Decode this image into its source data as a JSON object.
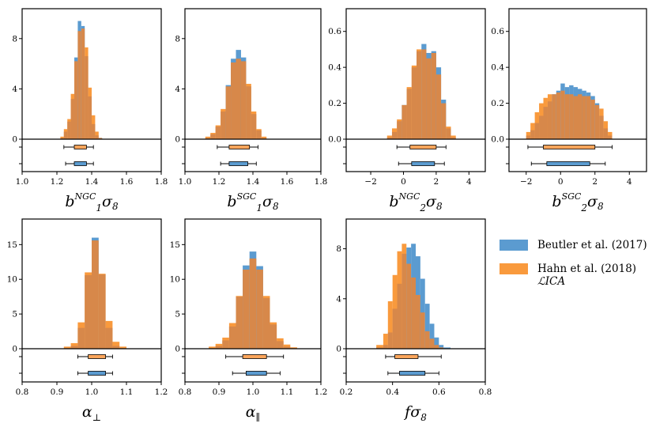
{
  "colors": {
    "series_a": "#5b9bd0",
    "series_b": "#f99a3d",
    "overlap": "#d7884a",
    "box_a": "#5b9bd0",
    "box_b": "#fca55b"
  },
  "legend": {
    "entries": [
      {
        "label": "Beutler et al. (2017)",
        "sublabel": "",
        "color_key": "series_a"
      },
      {
        "label": "Hahn et al. (2018)",
        "sublabel": "ℒICA",
        "color_key": "series_b"
      }
    ]
  },
  "chart_data": [
    {
      "type": "histogram",
      "xlabel": "b1NGCσ8",
      "xlabel_parts": {
        "base": "b",
        "sub": "1",
        "sup": "NGC",
        "tail": "σ8"
      },
      "xlim": [
        1.0,
        1.8
      ],
      "xticks": [
        "1.0",
        "1.2",
        "1.4",
        "1.6",
        "1.8"
      ],
      "ylim": [
        0,
        10
      ],
      "yticks": [
        "0",
        "4",
        "8"
      ],
      "bin_edges": [
        1.22,
        1.24,
        1.26,
        1.28,
        1.3,
        1.32,
        1.34,
        1.36,
        1.38,
        1.4,
        1.42,
        1.44,
        1.46
      ],
      "series": [
        {
          "name": "Beutler et al. (2017)",
          "values": [
            0.1,
            0.6,
            1.4,
            3.2,
            6.5,
            9.4,
            9.0,
            6.6,
            3.4,
            1.2,
            0.3,
            0.1
          ]
        },
        {
          "name": "Hahn et al. (2018)",
          "values": [
            0.2,
            0.8,
            1.6,
            3.6,
            6.2,
            8.6,
            8.8,
            7.3,
            4.1,
            1.9,
            0.6,
            0.1
          ]
        }
      ],
      "intervals": [
        {
          "name": "Hahn et al. (2018)",
          "whisker": [
            1.24,
            1.41
          ],
          "box": [
            1.3,
            1.37
          ]
        },
        {
          "name": "Beutler et al. (2017)",
          "whisker": [
            1.25,
            1.41
          ],
          "box": [
            1.3,
            1.37
          ]
        }
      ]
    },
    {
      "type": "histogram",
      "xlabel": "b1SGCσ8",
      "xlabel_parts": {
        "base": "b",
        "sub": "1",
        "sup": "SGC",
        "tail": "σ8"
      },
      "xlim": [
        1.0,
        1.8
      ],
      "xticks": [
        "1.0",
        "1.2",
        "1.4",
        "1.6",
        "1.8"
      ],
      "ylim": [
        0,
        10
      ],
      "yticks": [
        "0",
        "4",
        "8"
      ],
      "bin_edges": [
        1.12,
        1.15,
        1.18,
        1.21,
        1.24,
        1.27,
        1.3,
        1.33,
        1.36,
        1.39,
        1.42,
        1.45,
        1.48
      ],
      "series": [
        {
          "name": "Beutler et al. (2017)",
          "values": [
            0.1,
            0.4,
            1.0,
            2.2,
            4.3,
            6.4,
            7.1,
            6.5,
            4.2,
            2.0,
            0.7,
            0.1
          ]
        },
        {
          "name": "Hahn et al. (2018)",
          "values": [
            0.2,
            0.5,
            1.1,
            2.4,
            4.2,
            6.1,
            6.4,
            6.2,
            4.4,
            2.2,
            0.8,
            0.2
          ]
        }
      ],
      "intervals": [
        {
          "name": "Hahn et al. (2018)",
          "whisker": [
            1.19,
            1.43
          ],
          "box": [
            1.26,
            1.38
          ]
        },
        {
          "name": "Beutler et al. (2017)",
          "whisker": [
            1.21,
            1.42
          ],
          "box": [
            1.26,
            1.37
          ]
        }
      ]
    },
    {
      "type": "histogram",
      "xlabel": "b2NGCσ8",
      "xlabel_parts": {
        "base": "b",
        "sub": "2",
        "sup": "NGC",
        "tail": "σ8"
      },
      "xlim": [
        -3.5,
        5.0
      ],
      "xticks": [
        "−2",
        "0",
        "2",
        "4"
      ],
      "xtick_values": [
        -2,
        0,
        2,
        4
      ],
      "ylim": [
        0,
        0.7
      ],
      "yticks": [
        "0.0",
        "0.2",
        "0.4",
        "0.6"
      ],
      "bin_edges": [
        -1.0,
        -0.7,
        -0.4,
        -0.1,
        0.2,
        0.5,
        0.8,
        1.1,
        1.4,
        1.7,
        2.0,
        2.3,
        2.6,
        2.9,
        3.2
      ],
      "series": [
        {
          "name": "Beutler et al. (2017)",
          "values": [
            0.01,
            0.04,
            0.1,
            0.19,
            0.28,
            0.4,
            0.49,
            0.53,
            0.48,
            0.49,
            0.4,
            0.22,
            0.06,
            0.01
          ]
        },
        {
          "name": "Hahn et al. (2018)",
          "values": [
            0.02,
            0.06,
            0.11,
            0.19,
            0.29,
            0.41,
            0.5,
            0.5,
            0.45,
            0.48,
            0.36,
            0.2,
            0.07,
            0.02
          ]
        }
      ],
      "intervals": [
        {
          "name": "Hahn et al. (2018)",
          "whisker": [
            -0.4,
            2.6
          ],
          "box": [
            0.4,
            2.0
          ]
        },
        {
          "name": "Beutler et al. (2017)",
          "whisker": [
            -0.3,
            2.5
          ],
          "box": [
            0.5,
            1.9
          ]
        }
      ]
    },
    {
      "type": "histogram",
      "xlabel": "b2SGCσ8",
      "xlabel_parts": {
        "base": "b",
        "sub": "2",
        "sup": "SGC",
        "tail": "σ8"
      },
      "xlim": [
        -3.0,
        5.0
      ],
      "xticks": [
        "−2",
        "0",
        "2",
        "4"
      ],
      "xtick_values": [
        -2,
        0,
        2,
        4
      ],
      "ylim": [
        0,
        0.7
      ],
      "yticks": [
        "0.0",
        "0.2",
        "0.4",
        "0.6"
      ],
      "bin_edges": [
        -2.0,
        -1.75,
        -1.5,
        -1.25,
        -1.0,
        -0.75,
        -0.5,
        -0.25,
        0.0,
        0.25,
        0.5,
        0.75,
        1.0,
        1.25,
        1.5,
        1.75,
        2.0,
        2.25,
        2.5,
        2.75,
        3.0
      ],
      "series": [
        {
          "name": "Beutler et al. (2017)",
          "values": [
            0.02,
            0.05,
            0.09,
            0.13,
            0.18,
            0.21,
            0.25,
            0.27,
            0.31,
            0.29,
            0.3,
            0.29,
            0.28,
            0.27,
            0.26,
            0.24,
            0.2,
            0.13,
            0.06,
            0.02
          ]
        },
        {
          "name": "Hahn et al. (2018)",
          "values": [
            0.04,
            0.09,
            0.15,
            0.2,
            0.23,
            0.25,
            0.25,
            0.26,
            0.27,
            0.25,
            0.25,
            0.24,
            0.25,
            0.24,
            0.24,
            0.22,
            0.19,
            0.17,
            0.1,
            0.04
          ]
        }
      ],
      "intervals": [
        {
          "name": "Hahn et al. (2018)",
          "whisker": [
            -1.9,
            3.0
          ],
          "box": [
            -1.0,
            2.0
          ]
        },
        {
          "name": "Beutler et al. (2017)",
          "whisker": [
            -1.7,
            2.6
          ],
          "box": [
            -0.8,
            1.7
          ]
        }
      ]
    },
    {
      "type": "histogram",
      "xlabel": "α⊥",
      "xlabel_parts": {
        "base": "α",
        "sub": "⊥",
        "sup": "",
        "tail": ""
      },
      "xlim": [
        0.8,
        1.2
      ],
      "xticks": [
        "0.8",
        "0.9",
        "1.0",
        "1.1",
        "1.2"
      ],
      "ylim": [
        0,
        18
      ],
      "yticks": [
        "0",
        "5",
        "10",
        "15"
      ],
      "bin_edges": [
        0.92,
        0.94,
        0.96,
        0.98,
        1.0,
        1.02,
        1.04,
        1.06,
        1.08,
        1.1
      ],
      "series": [
        {
          "name": "Beutler et al. (2017)",
          "values": [
            0.1,
            0.4,
            3.0,
            10.6,
            16.0,
            10.7,
            3.0,
            0.4,
            0.1
          ]
        },
        {
          "name": "Hahn et al. (2018)",
          "values": [
            0.3,
            0.8,
            3.8,
            11.0,
            15.6,
            10.8,
            4.0,
            1.0,
            0.3
          ]
        }
      ],
      "intervals": [
        {
          "name": "Hahn et al. (2018)",
          "whisker": [
            0.96,
            1.06
          ],
          "box": [
            0.99,
            1.04
          ]
        },
        {
          "name": "Beutler et al. (2017)",
          "whisker": [
            0.96,
            1.06
          ],
          "box": [
            0.99,
            1.04
          ]
        }
      ]
    },
    {
      "type": "histogram",
      "xlabel": "α∥",
      "xlabel_parts": {
        "base": "α",
        "sub": "∥",
        "sup": "",
        "tail": ""
      },
      "xlim": [
        0.8,
        1.2
      ],
      "xticks": [
        "0.8",
        "0.9",
        "1.0",
        "1.1",
        "1.2"
      ],
      "ylim": [
        0,
        18
      ],
      "yticks": [
        "0",
        "5",
        "10",
        "15"
      ],
      "bin_edges": [
        0.87,
        0.89,
        0.91,
        0.93,
        0.95,
        0.97,
        0.99,
        1.01,
        1.03,
        1.05,
        1.07,
        1.09,
        1.11,
        1.13
      ],
      "series": [
        {
          "name": "Beutler et al. (2017)",
          "values": [
            0.1,
            0.4,
            1.2,
            3.2,
            7.5,
            12.0,
            14.0,
            11.9,
            7.3,
            3.5,
            1.1,
            0.3,
            0.1
          ]
        },
        {
          "name": "Hahn et al. (2018)",
          "values": [
            0.3,
            0.7,
            1.6,
            3.7,
            7.6,
            11.4,
            13.0,
            11.4,
            7.6,
            3.8,
            1.5,
            0.6,
            0.2
          ]
        }
      ],
      "intervals": [
        {
          "name": "Hahn et al. (2018)",
          "whisker": [
            0.92,
            1.09
          ],
          "box": [
            0.97,
            1.04
          ]
        },
        {
          "name": "Beutler et al. (2017)",
          "whisker": [
            0.94,
            1.08
          ],
          "box": [
            0.98,
            1.04
          ]
        }
      ]
    },
    {
      "type": "histogram",
      "xlabel": "fσ8",
      "xlabel_parts": {
        "base": "fσ",
        "sub": "8",
        "sup": "",
        "tail": ""
      },
      "xlim": [
        0.2,
        0.8
      ],
      "xticks": [
        "0.2",
        "0.4",
        "0.6",
        "0.8"
      ],
      "ylim": [
        0,
        10
      ],
      "yticks": [
        "0",
        "4",
        "8"
      ],
      "bin_edges": [
        0.33,
        0.36,
        0.38,
        0.4,
        0.42,
        0.44,
        0.46,
        0.48,
        0.5,
        0.52,
        0.54,
        0.56,
        0.58,
        0.6,
        0.62,
        0.65
      ],
      "series": [
        {
          "name": "Beutler et al. (2017)",
          "values": [
            0.1,
            0.3,
            1.3,
            3.2,
            5.2,
            7.6,
            8.1,
            8.4,
            7.4,
            5.6,
            3.6,
            2.0,
            0.9,
            0.3,
            0.1
          ]
        },
        {
          "name": "Hahn et al. (2018)",
          "values": [
            0.3,
            1.2,
            3.8,
            5.9,
            7.8,
            8.4,
            6.8,
            5.7,
            4.3,
            2.9,
            1.4,
            0.8,
            0.3,
            0.1,
            0.0
          ]
        }
      ],
      "intervals": [
        {
          "name": "Hahn et al. (2018)",
          "whisker": [
            0.37,
            0.61
          ],
          "box": [
            0.41,
            0.51
          ]
        },
        {
          "name": "Beutler et al. (2017)",
          "whisker": [
            0.38,
            0.6
          ],
          "box": [
            0.43,
            0.54
          ]
        }
      ]
    }
  ]
}
